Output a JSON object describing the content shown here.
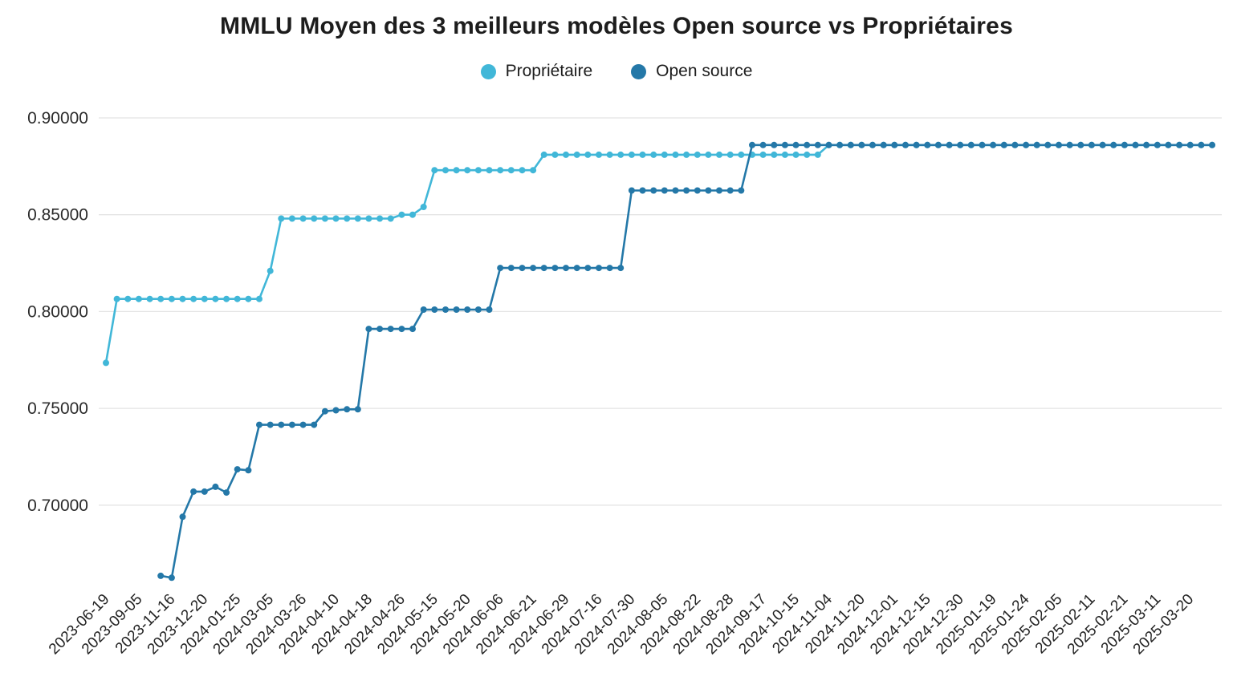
{
  "title": "MMLU Moyen des 3 meilleurs modèles Open source vs Propriétaires",
  "legend": [
    {
      "label": "Propriétaire",
      "color": "#41b7d8"
    },
    {
      "label": "Open source",
      "color": "#2478a8"
    }
  ],
  "chart_data": {
    "type": "line",
    "title": "MMLU Moyen des 3 meilleurs modèles Open source vs Propriétaires",
    "xlabel": "",
    "ylabel": "",
    "grid": "horizontal",
    "legend_position": "top-center",
    "yticks": [
      0.7,
      0.75,
      0.8,
      0.85,
      0.9
    ],
    "ytick_decimals": 5,
    "ylim": [
      0.655,
      0.9035
    ],
    "n_points": 102,
    "tick_every": 3,
    "x_tick_labels": [
      "2023-06-19",
      "2023-09-05",
      "2023-11-16",
      "2023-12-20",
      "2024-01-25",
      "2024-03-05",
      "2024-03-26",
      "2024-04-10",
      "2024-04-18",
      "2024-04-26",
      "2024-05-15",
      "2024-05-20",
      "2024-06-06",
      "2024-06-21",
      "2024-06-29",
      "2024-07-16",
      "2024-07-30",
      "2024-08-05",
      "2024-08-22",
      "2024-08-28",
      "2024-09-17",
      "2024-10-15",
      "2024-11-04",
      "2024-11-20",
      "2024-12-01",
      "2024-12-15",
      "2024-12-30",
      "2025-01-19",
      "2025-01-24",
      "2025-02-05",
      "2025-02-11",
      "2025-02-21",
      "2025-03-11",
      "2025-03-20"
    ],
    "series": [
      {
        "name": "Propriétaire",
        "color": "#41b7d8",
        "start_index": 0,
        "values": [
          0.7735,
          0.8065,
          0.8065,
          0.8065,
          0.8065,
          0.8065,
          0.8065,
          0.8065,
          0.8065,
          0.8065,
          0.8065,
          0.8065,
          0.8065,
          0.8065,
          0.8065,
          0.821,
          0.848,
          0.848,
          0.848,
          0.848,
          0.848,
          0.848,
          0.848,
          0.848,
          0.848,
          0.848,
          0.848,
          0.85,
          0.85,
          0.854,
          0.873,
          0.873,
          0.873,
          0.873,
          0.873,
          0.873,
          0.873,
          0.873,
          0.873,
          0.873,
          0.881,
          0.881,
          0.881,
          0.881,
          0.881,
          0.881,
          0.881,
          0.881,
          0.881,
          0.881,
          0.881,
          0.881,
          0.881,
          0.881,
          0.881,
          0.881,
          0.881,
          0.881,
          0.881,
          0.881,
          0.881,
          0.881,
          0.881,
          0.881,
          0.881,
          0.881,
          0.886,
          0.886,
          0.886,
          0.886,
          0.886,
          0.886,
          0.886,
          0.886,
          0.886,
          0.886,
          0.886,
          0.886,
          0.886,
          0.886,
          0.886,
          0.886,
          0.886,
          0.886,
          0.886,
          0.886,
          0.886,
          0.886,
          0.886,
          0.886,
          0.886,
          0.886,
          0.886,
          0.886,
          0.886,
          0.886,
          0.886,
          0.886,
          0.886,
          0.886,
          0.886,
          0.886
        ]
      },
      {
        "name": "Open source",
        "color": "#2478a8",
        "start_index": 5,
        "values": [
          0.6635,
          0.6625,
          0.694,
          0.707,
          0.707,
          0.7095,
          0.7065,
          0.7185,
          0.718,
          0.7415,
          0.7415,
          0.7415,
          0.7415,
          0.7415,
          0.7415,
          0.7485,
          0.749,
          0.7495,
          0.7495,
          0.791,
          0.791,
          0.791,
          0.791,
          0.791,
          0.801,
          0.801,
          0.801,
          0.801,
          0.801,
          0.801,
          0.801,
          0.8225,
          0.8225,
          0.8225,
          0.8225,
          0.8225,
          0.8225,
          0.8225,
          0.8225,
          0.8225,
          0.8225,
          0.8225,
          0.8225,
          0.8625,
          0.8625,
          0.8625,
          0.8625,
          0.8625,
          0.8625,
          0.8625,
          0.8625,
          0.8625,
          0.8625,
          0.8625,
          0.886,
          0.886,
          0.886,
          0.886,
          0.886,
          0.886,
          0.886,
          0.886,
          0.886,
          0.886,
          0.886,
          0.886,
          0.886,
          0.886,
          0.886,
          0.886,
          0.886,
          0.886,
          0.886,
          0.886,
          0.886,
          0.886,
          0.886,
          0.886,
          0.886,
          0.886,
          0.886,
          0.886,
          0.886,
          0.886,
          0.886,
          0.886,
          0.886,
          0.886,
          0.886,
          0.886,
          0.886,
          0.886,
          0.886,
          0.886,
          0.886,
          0.886,
          0.886
        ]
      }
    ]
  }
}
